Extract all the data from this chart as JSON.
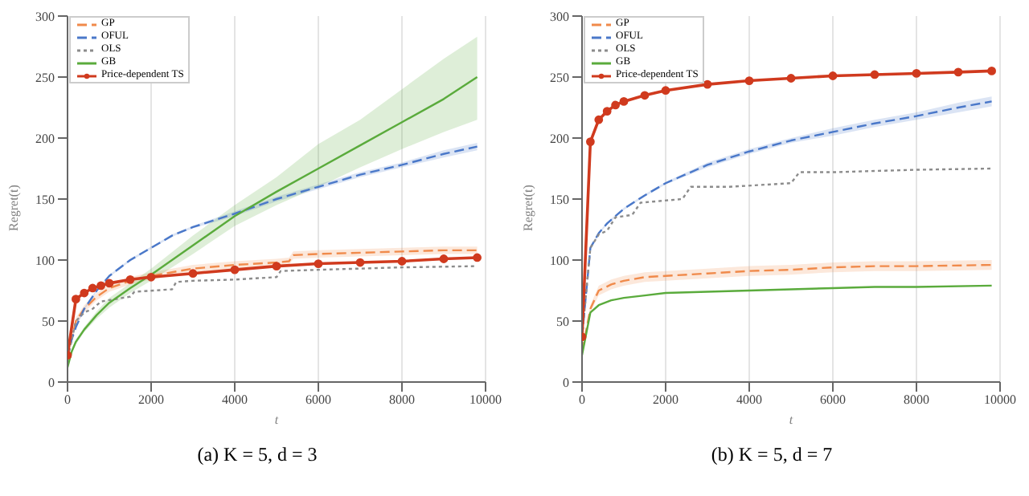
{
  "chart_data": [
    {
      "type": "line",
      "title": "(a) K = 5, d = 3",
      "xlabel": "t",
      "ylabel": "Regret(t)",
      "xlim": [
        0,
        10000
      ],
      "xticks": [
        0,
        2000,
        4000,
        6000,
        8000,
        10000
      ],
      "ylim": [
        0,
        300
      ],
      "yticks": [
        0,
        50,
        100,
        150,
        200,
        250,
        300
      ],
      "grid": "x",
      "legend": "top left",
      "series": [
        {
          "name": "GP",
          "color": "#f08a4b",
          "line_style": "dashed",
          "x": [
            0,
            200,
            400,
            700,
            1000,
            1500,
            2000,
            2500,
            3000,
            4000,
            5000,
            5300,
            5400,
            6000,
            7000,
            8000,
            9000,
            9800
          ],
          "values": [
            20,
            50,
            60,
            70,
            77,
            83,
            87,
            90,
            93,
            96,
            98,
            99,
            104,
            105,
            106,
            107,
            108,
            108
          ],
          "lower": [
            18,
            47,
            57,
            67,
            74,
            80,
            84,
            87,
            90,
            93,
            95,
            96,
            101,
            102,
            103,
            104,
            105,
            105
          ],
          "upper": [
            22,
            53,
            63,
            73,
            80,
            86,
            90,
            93,
            96,
            99,
            101,
            102,
            107,
            108,
            109,
            110,
            111,
            111
          ]
        },
        {
          "name": "OFUL",
          "color": "#4a78c9",
          "line_style": "dashed",
          "x": [
            0,
            100,
            200,
            400,
            700,
            1000,
            1500,
            2000,
            2500,
            3000,
            4000,
            5000,
            6000,
            7000,
            8000,
            9000,
            9800
          ],
          "values": [
            20,
            35,
            45,
            60,
            75,
            87,
            100,
            110,
            120,
            127,
            138,
            150,
            160,
            170,
            178,
            187,
            193
          ],
          "lower": [
            19,
            34,
            44,
            59,
            74,
            86,
            99,
            109,
            119,
            126,
            136,
            148,
            158,
            168,
            176,
            184,
            190
          ],
          "upper": [
            21,
            36,
            46,
            61,
            76,
            88,
            101,
            111,
            121,
            128,
            140,
            152,
            162,
            172,
            180,
            190,
            196
          ]
        },
        {
          "name": "OLS",
          "color": "#8c8c8c",
          "line_style": "dotted",
          "x": [
            0,
            200,
            400,
            600,
            800,
            1500,
            1600,
            2500,
            2600,
            3000,
            4000,
            5000,
            5100,
            6000,
            8000,
            9800
          ],
          "values": [
            20,
            50,
            57,
            60,
            66,
            70,
            74,
            76,
            82,
            83,
            84,
            86,
            91,
            92,
            94,
            95
          ]
        },
        {
          "name": "GB",
          "color": "#5aab3c",
          "line_style": "solid",
          "x": [
            0,
            100,
            200,
            400,
            700,
            1000,
            1500,
            2000,
            3000,
            4000,
            5000,
            6000,
            7000,
            8000,
            9000,
            9800
          ],
          "values": [
            12,
            25,
            33,
            43,
            55,
            65,
            77,
            88,
            112,
            136,
            156,
            175,
            194,
            213,
            232,
            250
          ],
          "lower": [
            11,
            23,
            31,
            41,
            52,
            61,
            73,
            83,
            105,
            128,
            145,
            160,
            176,
            191,
            205,
            215
          ],
          "upper": [
            13,
            27,
            35,
            45,
            58,
            69,
            81,
            93,
            120,
            145,
            168,
            195,
            215,
            240,
            265,
            283
          ]
        },
        {
          "name": "Price-dependent TS",
          "color": "#d03a1e",
          "line_style": "solid",
          "marker": "circle",
          "x": [
            0,
            200,
            400,
            600,
            800,
            1000,
            1500,
            2000,
            3000,
            4000,
            5000,
            6000,
            7000,
            8000,
            9000,
            9800
          ],
          "values": [
            22,
            68,
            73,
            77,
            79,
            81,
            84,
            86,
            89,
            92,
            95,
            97,
            98,
            99,
            101,
            102
          ]
        }
      ]
    },
    {
      "type": "line",
      "title": "(b) K = 5, d = 7",
      "xlabel": "t",
      "ylabel": "Regret(t)",
      "xlim": [
        0,
        10000
      ],
      "xticks": [
        0,
        2000,
        4000,
        6000,
        8000,
        10000
      ],
      "ylim": [
        0,
        300
      ],
      "yticks": [
        0,
        50,
        100,
        150,
        200,
        250,
        300
      ],
      "grid": "x",
      "legend": "top left",
      "series": [
        {
          "name": "GP",
          "color": "#f08a4b",
          "line_style": "dashed",
          "x": [
            0,
            200,
            400,
            700,
            1000,
            1500,
            2000,
            3000,
            4000,
            5000,
            6000,
            7000,
            8000,
            9800
          ],
          "values": [
            25,
            60,
            75,
            80,
            83,
            86,
            87,
            89,
            91,
            92,
            94,
            95,
            95,
            96
          ],
          "lower": [
            24,
            57,
            71,
            76,
            79,
            82,
            83,
            85,
            87,
            88,
            90,
            91,
            91,
            92
          ],
          "upper": [
            26,
            63,
            79,
            84,
            87,
            90,
            91,
            93,
            95,
            96,
            98,
            99,
            99,
            100
          ]
        },
        {
          "name": "OFUL",
          "color": "#4a78c9",
          "line_style": "dashed",
          "x": [
            0,
            200,
            400,
            600,
            1000,
            1500,
            2000,
            3000,
            4000,
            5000,
            6000,
            7000,
            8000,
            9000,
            9800
          ],
          "values": [
            37,
            110,
            122,
            130,
            142,
            153,
            163,
            178,
            189,
            198,
            205,
            212,
            218,
            225,
            230
          ],
          "lower": [
            36,
            109,
            121,
            129,
            141,
            152,
            162,
            176,
            187,
            196,
            202,
            209,
            215,
            221,
            226
          ],
          "upper": [
            38,
            111,
            123,
            131,
            143,
            154,
            164,
            180,
            191,
            200,
            208,
            215,
            221,
            229,
            234
          ]
        },
        {
          "name": "OLS",
          "color": "#8c8c8c",
          "line_style": "dotted",
          "x": [
            0,
            200,
            400,
            600,
            800,
            1200,
            1400,
            2400,
            2600,
            3500,
            5000,
            5200,
            6000,
            7000,
            8000,
            9800
          ],
          "values": [
            37,
            110,
            121,
            124,
            135,
            137,
            147,
            150,
            160,
            160,
            163,
            172,
            172,
            173,
            174,
            175
          ]
        },
        {
          "name": "GB",
          "color": "#5aab3c",
          "line_style": "solid",
          "x": [
            0,
            200,
            400,
            700,
            1000,
            1500,
            2000,
            3000,
            4000,
            5000,
            6000,
            7000,
            8000,
            9800
          ],
          "values": [
            22,
            57,
            63,
            67,
            69,
            71,
            73,
            74,
            75,
            76,
            77,
            78,
            78,
            79
          ]
        },
        {
          "name": "Price-dependent TS",
          "color": "#d03a1e",
          "line_style": "solid",
          "marker": "circle",
          "x": [
            0,
            200,
            400,
            600,
            800,
            1000,
            1500,
            2000,
            3000,
            4000,
            5000,
            6000,
            7000,
            8000,
            9000,
            9800
          ],
          "values": [
            37,
            197,
            215,
            222,
            227,
            230,
            235,
            239,
            244,
            247,
            249,
            251,
            252,
            253,
            254,
            255
          ]
        }
      ]
    }
  ]
}
